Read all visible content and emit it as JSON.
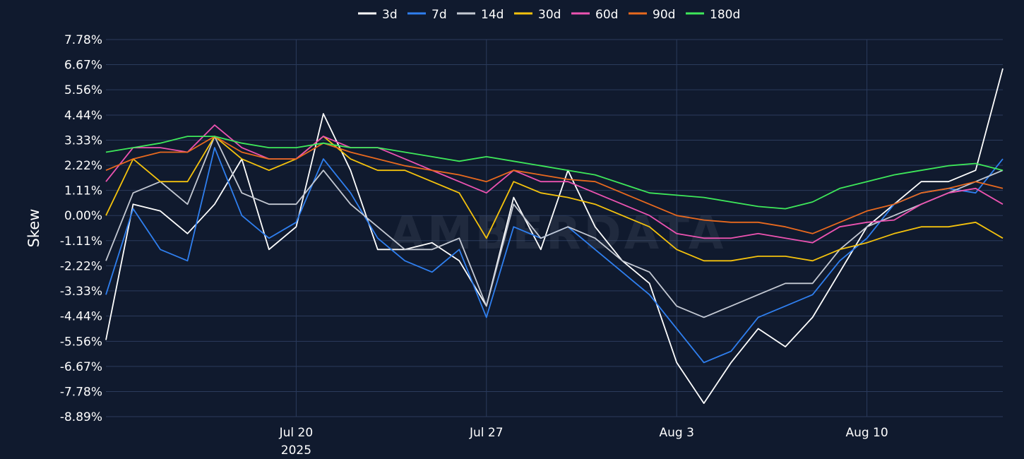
{
  "watermark": "AMBERDATA",
  "chart_data": {
    "type": "line",
    "title": "",
    "xlabel": "",
    "ylabel": "Skew",
    "x_range": [
      "2025-07-13",
      "2025-08-15"
    ],
    "ylim": [
      -8.89,
      7.78
    ],
    "y_ticks": [
      "7.78%",
      "6.67%",
      "5.56%",
      "4.44%",
      "3.33%",
      "2.22%",
      "1.11%",
      "0.00%",
      "-1.11%",
      "-2.22%",
      "-3.33%",
      "-4.44%",
      "-5.56%",
      "-6.67%",
      "-7.78%",
      "-8.89%"
    ],
    "y_tick_values": [
      7.78,
      6.67,
      5.56,
      4.44,
      3.33,
      2.22,
      1.11,
      0.0,
      -1.11,
      -2.22,
      -3.33,
      -4.44,
      -5.56,
      -6.67,
      -7.78,
      -8.89
    ],
    "x_ticks": [
      {
        "date": "2025-07-20",
        "label": "Jul 20",
        "sublabel": "2025"
      },
      {
        "date": "2025-07-27",
        "label": "Jul 27",
        "sublabel": ""
      },
      {
        "date": "2025-08-03",
        "label": "Aug 3",
        "sublabel": ""
      },
      {
        "date": "2025-08-10",
        "label": "Aug 10",
        "sublabel": ""
      }
    ],
    "grid": true,
    "legend": "top-center",
    "series": [
      {
        "name": "3d",
        "color": "#ffffff",
        "x": [
          "2025-07-13",
          "2025-07-14",
          "2025-07-15",
          "2025-07-16",
          "2025-07-17",
          "2025-07-18",
          "2025-07-19",
          "2025-07-20",
          "2025-07-21",
          "2025-07-22",
          "2025-07-23",
          "2025-07-24",
          "2025-07-25",
          "2025-07-26",
          "2025-07-27",
          "2025-07-28",
          "2025-07-29",
          "2025-07-30",
          "2025-07-31",
          "2025-08-01",
          "2025-08-02",
          "2025-08-03",
          "2025-08-04",
          "2025-08-05",
          "2025-08-06",
          "2025-08-07",
          "2025-08-08",
          "2025-08-09",
          "2025-08-10",
          "2025-08-11",
          "2025-08-12",
          "2025-08-13",
          "2025-08-14",
          "2025-08-15"
        ],
        "values": [
          -5.5,
          0.5,
          0.2,
          -0.8,
          0.5,
          2.5,
          -1.5,
          -0.5,
          4.5,
          2.0,
          -1.5,
          -1.5,
          -1.2,
          -2.0,
          -4.0,
          0.8,
          -1.5,
          2.0,
          -0.5,
          -2.0,
          -3.0,
          -6.5,
          -8.3,
          -6.5,
          -5.0,
          -5.8,
          -4.5,
          -2.5,
          -0.5,
          0.5,
          1.5,
          1.5,
          2.0,
          6.5
        ]
      },
      {
        "name": "7d",
        "color": "#2f7fef",
        "x": [
          "2025-07-13",
          "2025-07-14",
          "2025-07-15",
          "2025-07-16",
          "2025-07-17",
          "2025-07-18",
          "2025-07-19",
          "2025-07-20",
          "2025-07-21",
          "2025-07-22",
          "2025-07-23",
          "2025-07-24",
          "2025-07-25",
          "2025-07-26",
          "2025-07-27",
          "2025-07-28",
          "2025-07-29",
          "2025-07-30",
          "2025-07-31",
          "2025-08-01",
          "2025-08-02",
          "2025-08-03",
          "2025-08-04",
          "2025-08-05",
          "2025-08-06",
          "2025-08-07",
          "2025-08-08",
          "2025-08-09",
          "2025-08-10",
          "2025-08-11",
          "2025-08-12",
          "2025-08-13",
          "2025-08-14",
          "2025-08-15"
        ],
        "values": [
          -3.5,
          0.3,
          -1.5,
          -2.0,
          3.0,
          0.0,
          -1.0,
          -0.3,
          2.5,
          1.0,
          -1.0,
          -2.0,
          -2.5,
          -1.5,
          -4.5,
          -0.5,
          -1.0,
          -0.5,
          -1.5,
          -2.5,
          -3.5,
          -5.0,
          -6.5,
          -6.0,
          -4.5,
          -4.0,
          -3.5,
          -2.0,
          -1.0,
          0.5,
          1.0,
          1.2,
          1.0,
          2.5
        ]
      },
      {
        "name": "14d",
        "color": "#c4c9d3",
        "x": [
          "2025-07-13",
          "2025-07-14",
          "2025-07-15",
          "2025-07-16",
          "2025-07-17",
          "2025-07-18",
          "2025-07-19",
          "2025-07-20",
          "2025-07-21",
          "2025-07-22",
          "2025-07-23",
          "2025-07-24",
          "2025-07-25",
          "2025-07-26",
          "2025-07-27",
          "2025-07-28",
          "2025-07-29",
          "2025-07-30",
          "2025-07-31",
          "2025-08-01",
          "2025-08-02",
          "2025-08-03",
          "2025-08-04",
          "2025-08-05",
          "2025-08-06",
          "2025-08-07",
          "2025-08-08",
          "2025-08-09",
          "2025-08-10",
          "2025-08-11",
          "2025-08-12",
          "2025-08-13",
          "2025-08-14",
          "2025-08-15"
        ],
        "values": [
          -2.0,
          1.0,
          1.5,
          0.5,
          3.5,
          1.0,
          0.5,
          0.5,
          2.0,
          0.5,
          -0.5,
          -1.5,
          -1.5,
          -1.0,
          -4.0,
          0.5,
          -1.0,
          -0.5,
          -1.0,
          -2.0,
          -2.5,
          -4.0,
          -4.5,
          -4.0,
          -3.5,
          -3.0,
          -3.0,
          -1.5,
          -0.5,
          0.0,
          0.5,
          1.0,
          1.5,
          2.0
        ]
      },
      {
        "name": "30d",
        "color": "#f4c20d",
        "x": [
          "2025-07-13",
          "2025-07-14",
          "2025-07-15",
          "2025-07-16",
          "2025-07-17",
          "2025-07-18",
          "2025-07-19",
          "2025-07-20",
          "2025-07-21",
          "2025-07-22",
          "2025-07-23",
          "2025-07-24",
          "2025-07-25",
          "2025-07-26",
          "2025-07-27",
          "2025-07-28",
          "2025-07-29",
          "2025-07-30",
          "2025-07-31",
          "2025-08-01",
          "2025-08-02",
          "2025-08-03",
          "2025-08-04",
          "2025-08-05",
          "2025-08-06",
          "2025-08-07",
          "2025-08-08",
          "2025-08-09",
          "2025-08-10",
          "2025-08-11",
          "2025-08-12",
          "2025-08-13",
          "2025-08-14",
          "2025-08-15"
        ],
        "values": [
          0.0,
          2.5,
          1.5,
          1.5,
          3.5,
          2.5,
          2.0,
          2.5,
          3.5,
          2.5,
          2.0,
          2.0,
          1.5,
          1.0,
          -1.0,
          1.5,
          1.0,
          0.8,
          0.5,
          0.0,
          -0.5,
          -1.5,
          -2.0,
          -2.0,
          -1.8,
          -1.8,
          -2.0,
          -1.5,
          -1.2,
          -0.8,
          -0.5,
          -0.5,
          -0.3,
          -1.0
        ]
      },
      {
        "name": "60d",
        "color": "#ec53b1",
        "x": [
          "2025-07-13",
          "2025-07-14",
          "2025-07-15",
          "2025-07-16",
          "2025-07-17",
          "2025-07-18",
          "2025-07-19",
          "2025-07-20",
          "2025-07-21",
          "2025-07-22",
          "2025-07-23",
          "2025-07-24",
          "2025-07-25",
          "2025-07-26",
          "2025-07-27",
          "2025-07-28",
          "2025-07-29",
          "2025-07-30",
          "2025-07-31",
          "2025-08-01",
          "2025-08-02",
          "2025-08-03",
          "2025-08-04",
          "2025-08-05",
          "2025-08-06",
          "2025-08-07",
          "2025-08-08",
          "2025-08-09",
          "2025-08-10",
          "2025-08-11",
          "2025-08-12",
          "2025-08-13",
          "2025-08-14",
          "2025-08-15"
        ],
        "values": [
          1.5,
          3.0,
          3.0,
          2.8,
          4.0,
          3.0,
          2.5,
          2.5,
          3.5,
          3.0,
          3.0,
          2.5,
          2.0,
          1.5,
          1.0,
          2.0,
          1.5,
          1.5,
          1.0,
          0.5,
          0.0,
          -0.8,
          -1.0,
          -1.0,
          -0.8,
          -1.0,
          -1.2,
          -0.5,
          -0.3,
          -0.2,
          0.5,
          1.0,
          1.2,
          0.5
        ]
      },
      {
        "name": "90d",
        "color": "#e8691e",
        "x": [
          "2025-07-13",
          "2025-07-14",
          "2025-07-15",
          "2025-07-16",
          "2025-07-17",
          "2025-07-18",
          "2025-07-19",
          "2025-07-20",
          "2025-07-21",
          "2025-07-22",
          "2025-07-23",
          "2025-07-24",
          "2025-07-25",
          "2025-07-26",
          "2025-07-27",
          "2025-07-28",
          "2025-07-29",
          "2025-07-30",
          "2025-07-31",
          "2025-08-01",
          "2025-08-02",
          "2025-08-03",
          "2025-08-04",
          "2025-08-05",
          "2025-08-06",
          "2025-08-07",
          "2025-08-08",
          "2025-08-09",
          "2025-08-10",
          "2025-08-11",
          "2025-08-12",
          "2025-08-13",
          "2025-08-14",
          "2025-08-15"
        ],
        "values": [
          2.0,
          2.5,
          2.8,
          2.8,
          3.5,
          2.8,
          2.5,
          2.5,
          3.2,
          2.8,
          2.5,
          2.2,
          2.0,
          1.8,
          1.5,
          2.0,
          1.8,
          1.6,
          1.5,
          1.0,
          0.5,
          0.0,
          -0.2,
          -0.3,
          -0.3,
          -0.5,
          -0.8,
          -0.3,
          0.2,
          0.5,
          1.0,
          1.2,
          1.5,
          1.2
        ]
      },
      {
        "name": "180d",
        "color": "#3ee85a",
        "x": [
          "2025-07-13",
          "2025-07-14",
          "2025-07-15",
          "2025-07-16",
          "2025-07-17",
          "2025-07-18",
          "2025-07-19",
          "2025-07-20",
          "2025-07-21",
          "2025-07-22",
          "2025-07-23",
          "2025-07-24",
          "2025-07-25",
          "2025-07-26",
          "2025-07-27",
          "2025-07-28",
          "2025-07-29",
          "2025-07-30",
          "2025-07-31",
          "2025-08-01",
          "2025-08-02",
          "2025-08-03",
          "2025-08-04",
          "2025-08-05",
          "2025-08-06",
          "2025-08-07",
          "2025-08-08",
          "2025-08-09",
          "2025-08-10",
          "2025-08-11",
          "2025-08-12",
          "2025-08-13",
          "2025-08-14",
          "2025-08-15"
        ],
        "values": [
          2.8,
          3.0,
          3.2,
          3.5,
          3.5,
          3.2,
          3.0,
          3.0,
          3.2,
          3.0,
          3.0,
          2.8,
          2.6,
          2.4,
          2.6,
          2.4,
          2.2,
          2.0,
          1.8,
          1.4,
          1.0,
          0.9,
          0.8,
          0.6,
          0.4,
          0.3,
          0.6,
          1.2,
          1.5,
          1.8,
          2.0,
          2.2,
          2.3,
          2.0
        ]
      }
    ]
  }
}
